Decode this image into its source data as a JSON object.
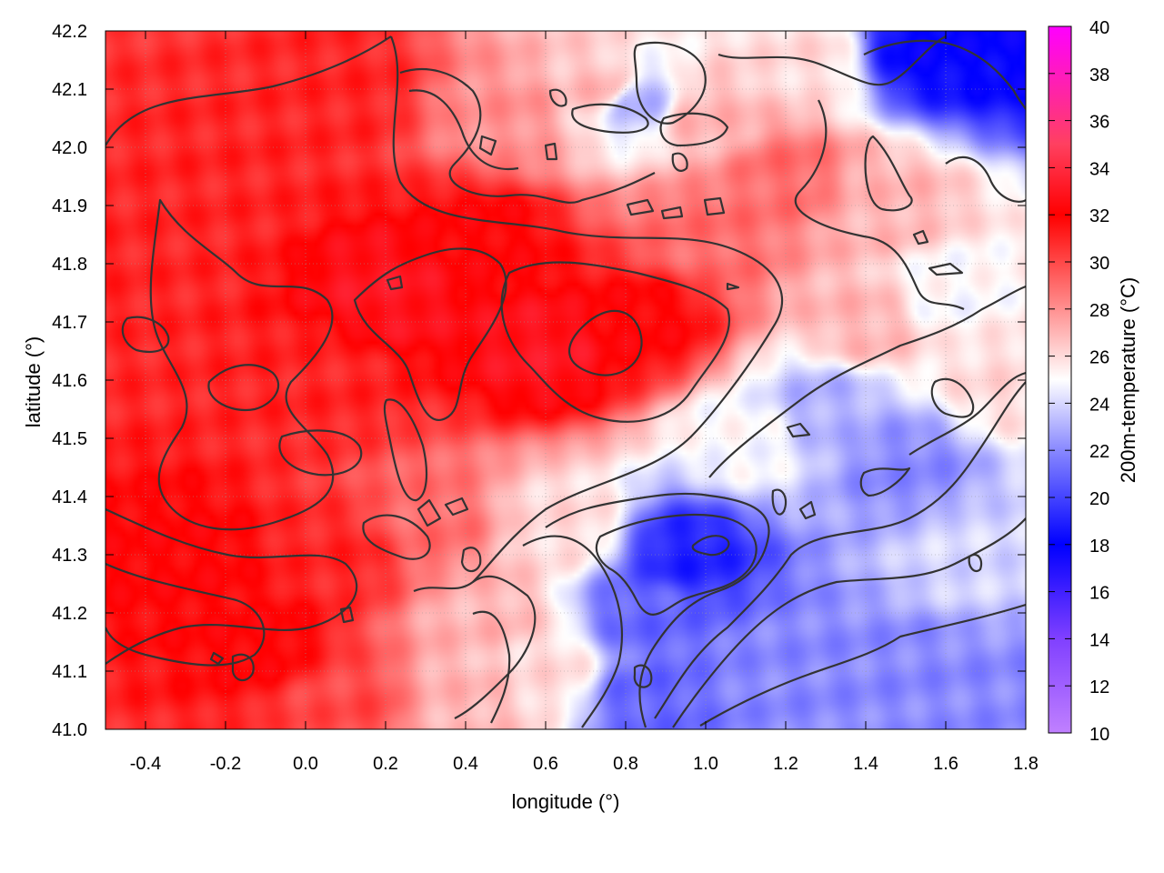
{
  "chart_data": {
    "type": "heatmap",
    "title": "",
    "xlabel": "longitude (°)",
    "ylabel": "latitude (°)",
    "colorbar_label": "200m-temperature (°C)",
    "xlim": [
      -0.5,
      1.8
    ],
    "ylim": [
      41.0,
      42.2
    ],
    "color_range": [
      10,
      40
    ],
    "x_ticks": [
      "-0.4",
      "-0.2",
      "0.0",
      "0.2",
      "0.4",
      "0.6",
      "0.8",
      "1.0",
      "1.2",
      "1.4",
      "1.6",
      "1.8"
    ],
    "x_tick_values": [
      -0.4,
      -0.2,
      0.0,
      0.2,
      0.4,
      0.6,
      0.8,
      1.0,
      1.2,
      1.4,
      1.6,
      1.8
    ],
    "y_ticks": [
      "41.0",
      "41.1",
      "41.2",
      "41.3",
      "41.4",
      "41.5",
      "41.6",
      "41.7",
      "41.8",
      "41.9",
      "42.0",
      "42.1",
      "42.2"
    ],
    "y_tick_values": [
      41.0,
      41.1,
      41.2,
      41.3,
      41.4,
      41.5,
      41.6,
      41.7,
      41.8,
      41.9,
      42.0,
      42.1,
      42.2
    ],
    "colorbar_ticks": [
      "10",
      "12",
      "14",
      "16",
      "18",
      "20",
      "22",
      "24",
      "26",
      "28",
      "30",
      "32",
      "34",
      "36",
      "38",
      "40"
    ],
    "colorbar_tick_values": [
      10,
      12,
      14,
      16,
      18,
      20,
      22,
      24,
      26,
      28,
      30,
      32,
      34,
      36,
      38,
      40
    ],
    "colormap": [
      {
        "value": 10,
        "color": "#c080ff"
      },
      {
        "value": 14,
        "color": "#8040ff"
      },
      {
        "value": 18,
        "color": "#0000ff"
      },
      {
        "value": 22,
        "color": "#8888ff"
      },
      {
        "value": 25,
        "color": "#ffffff"
      },
      {
        "value": 28,
        "color": "#ff9090"
      },
      {
        "value": 32,
        "color": "#ff0000"
      },
      {
        "value": 35,
        "color": "#ff4060"
      },
      {
        "value": 40,
        "color": "#ff00ff"
      }
    ],
    "grid": true,
    "contours": true,
    "field_samples": [
      {
        "lon": -0.35,
        "lat": 41.8,
        "temp": 31
      },
      {
        "lon": -0.3,
        "lat": 41.3,
        "temp": 32
      },
      {
        "lon": -0.1,
        "lat": 41.15,
        "temp": 32
      },
      {
        "lon": -0.2,
        "lat": 41.95,
        "temp": 31
      },
      {
        "lon": 0.05,
        "lat": 41.6,
        "temp": 31
      },
      {
        "lon": 0.2,
        "lat": 41.75,
        "temp": 33
      },
      {
        "lon": 0.45,
        "lat": 41.85,
        "temp": 32
      },
      {
        "lon": 0.6,
        "lat": 41.65,
        "temp": 33
      },
      {
        "lon": 0.85,
        "lat": 41.7,
        "temp": 32
      },
      {
        "lon": 0.1,
        "lat": 42.1,
        "temp": 31
      },
      {
        "lon": 0.5,
        "lat": 42.05,
        "temp": 28
      },
      {
        "lon": 0.75,
        "lat": 42.1,
        "temp": 27
      },
      {
        "lon": 0.82,
        "lat": 42.08,
        "temp": 23
      },
      {
        "lon": 1.0,
        "lat": 42.05,
        "temp": 27
      },
      {
        "lon": 1.2,
        "lat": 41.95,
        "temp": 29
      },
      {
        "lon": 1.25,
        "lat": 42.15,
        "temp": 26
      },
      {
        "lon": 1.55,
        "lat": 42.17,
        "temp": 18
      },
      {
        "lon": 1.75,
        "lat": 42.17,
        "temp": 18
      },
      {
        "lon": 1.45,
        "lat": 41.9,
        "temp": 27
      },
      {
        "lon": 1.6,
        "lat": 41.75,
        "temp": 25
      },
      {
        "lon": 1.75,
        "lat": 41.6,
        "temp": 26
      },
      {
        "lon": 1.3,
        "lat": 41.55,
        "temp": 23
      },
      {
        "lon": 1.1,
        "lat": 41.5,
        "temp": 25
      },
      {
        "lon": 1.5,
        "lat": 41.45,
        "temp": 22
      },
      {
        "lon": 1.65,
        "lat": 41.3,
        "temp": 24
      },
      {
        "lon": 0.95,
        "lat": 41.3,
        "temp": 19
      },
      {
        "lon": 0.85,
        "lat": 41.2,
        "temp": 21
      },
      {
        "lon": 0.85,
        "lat": 41.05,
        "temp": 21
      },
      {
        "lon": 1.2,
        "lat": 41.1,
        "temp": 22
      },
      {
        "lon": 1.5,
        "lat": 41.1,
        "temp": 22
      },
      {
        "lon": 1.75,
        "lat": 41.05,
        "temp": 22
      },
      {
        "lon": 0.6,
        "lat": 41.1,
        "temp": 26
      },
      {
        "lon": 0.45,
        "lat": 41.2,
        "temp": 27
      },
      {
        "lon": 0.3,
        "lat": 41.35,
        "temp": 29
      },
      {
        "lon": 0.1,
        "lat": 41.3,
        "temp": 31
      },
      {
        "lon": 0.65,
        "lat": 41.35,
        "temp": 26
      },
      {
        "lon": 0.4,
        "lat": 41.05,
        "temp": 27
      },
      {
        "lon": 0.1,
        "lat": 41.05,
        "temp": 30
      },
      {
        "lon": 1.0,
        "lat": 41.85,
        "temp": 29
      },
      {
        "lon": 1.4,
        "lat": 41.7,
        "temp": 27
      }
    ]
  }
}
